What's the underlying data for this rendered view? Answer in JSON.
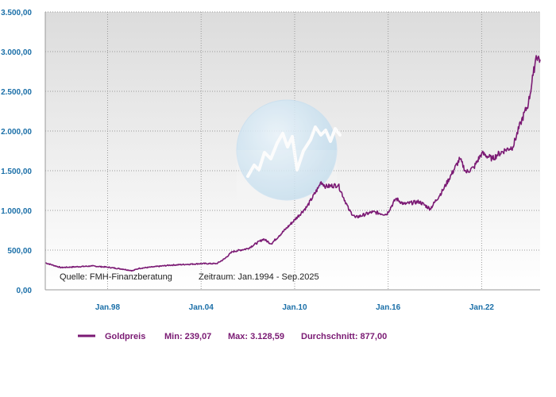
{
  "chart_data": {
    "type": "line",
    "source_note": "Quelle: FMH-Finanzberatung",
    "period_note": "Zeitraum: Jan.1994 - Sep.2025",
    "x_tick_labels": [
      "Jan.98",
      "Jan.04",
      "Jan.10",
      "Jan.16",
      "Jan.22"
    ],
    "y_tick_labels": [
      "0,00",
      "500,00",
      "1.000,00",
      "1.500,00",
      "2.000,00",
      "2.500,00",
      "3.000,00",
      "3.500,00"
    ],
    "xlim": [
      1994.0,
      2025.75
    ],
    "ylim": [
      0,
      3500
    ],
    "grid": true,
    "series": [
      {
        "name": "Goldpreis",
        "color": "#7b1a74",
        "x": [
          1994.0,
          1995.0,
          1996.0,
          1997.0,
          1998.0,
          1999.0,
          1999.6,
          2000.0,
          2001.0,
          2002.0,
          2003.0,
          2004.0,
          2005.0,
          2005.5,
          2006.0,
          2007.0,
          2008.0,
          2008.5,
          2009.0,
          2010.0,
          2010.8,
          2011.5,
          2011.7,
          2012.0,
          2012.8,
          2013.5,
          2013.9,
          2015.0,
          2015.9,
          2016.5,
          2017.0,
          2018.0,
          2018.7,
          2019.5,
          2020.6,
          2021.0,
          2021.5,
          2022.0,
          2022.7,
          2023.0,
          2023.5,
          2024.0,
          2024.5,
          2025.0,
          2025.3,
          2025.5,
          2025.75
        ],
        "y": [
          340,
          280,
          290,
          300,
          285,
          260,
          240,
          270,
          290,
          310,
          320,
          330,
          330,
          390,
          480,
          520,
          640,
          580,
          680,
          880,
          1050,
          1280,
          1360,
          1300,
          1320,
          1000,
          910,
          980,
          950,
          1150,
          1080,
          1110,
          1020,
          1250,
          1650,
          1480,
          1540,
          1720,
          1650,
          1700,
          1760,
          1800,
          2100,
          2350,
          2700,
          2950,
          2900
        ]
      }
    ],
    "legend": {
      "series_label": "Goldpreis",
      "min_label": "Min: 239,07",
      "max_label": "Max: 3.128,59",
      "avg_label": "Durchschnitt: 877,00"
    }
  }
}
